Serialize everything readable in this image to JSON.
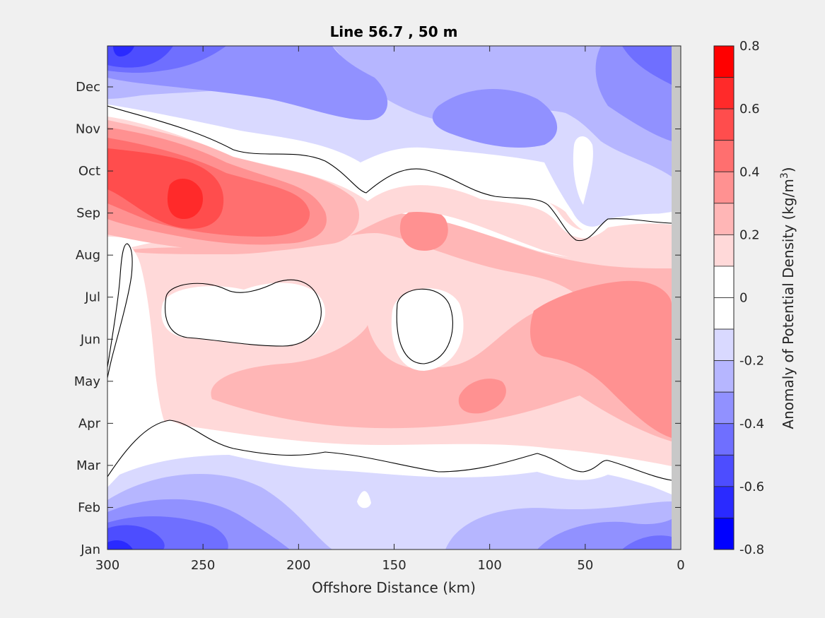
{
  "chart_data": {
    "type": "contour",
    "title": "Line 56.7 , 50 m",
    "xlabel": "Offshore Distance (km)",
    "xlim": [
      300,
      0
    ],
    "x_reversed": true,
    "x_ticks": [
      "300",
      "250",
      "200",
      "150",
      "100",
      "50",
      "0"
    ],
    "y_ticks": [
      "Jan",
      "Feb",
      "Mar",
      "Apr",
      "May",
      "Jun",
      "Jul",
      "Aug",
      "Sep",
      "Oct",
      "Nov",
      "Dec"
    ],
    "colorbar": {
      "label": "Anomaly of Potential Density (kg/m",
      "label_superscript": "3",
      "label_suffix": ")",
      "range": [
        -0.8,
        0.8
      ],
      "step": 0.1,
      "tick_labels": [
        "0.8",
        "0.6",
        "0.4",
        "0.2",
        "0",
        "-0.2",
        "-0.4",
        "-0.6",
        "-0.8"
      ],
      "colors": {
        "0.8": "#ff0000",
        "0.7": "#ff2a2a",
        "0.6": "#ff4d4d",
        "0.5": "#ff6f6f",
        "0.4": "#ff9191",
        "0.3": "#ffb6b6",
        "0.2": "#ffd9d9",
        "0.1": "#ffffff",
        "0": "#ffffff",
        "-0.1": "#d9d9ff",
        "-0.2": "#b6b6ff",
        "-0.3": "#9191ff",
        "-0.4": "#6f6fff",
        "-0.5": "#4d4dff",
        "-0.6": "#2a2aff",
        "-0.7": "#0000ff"
      }
    },
    "features": [
      {
        "month": "Jan-Feb",
        "range_km": [
          300,
          0
        ],
        "anomaly": -0.4,
        "note": "negative, strongest near 280-300 km (-0.6)"
      },
      {
        "month": "Mar",
        "range_km": [
          300,
          0
        ],
        "anomaly": -0.1
      },
      {
        "month": "Apr-Jun",
        "range_km": [
          300,
          0
        ],
        "anomaly": 0.2,
        "note": "positive, up to 0.4 near 0-60 km"
      },
      {
        "month": "Jul",
        "x_km": 210,
        "anomaly": -0.1,
        "note": "local negative eddy"
      },
      {
        "month": "Jul",
        "x_km": 135,
        "anomaly": -0.1,
        "note": "local negative eddy"
      },
      {
        "month": "Sep",
        "x_km": 260,
        "anomaly": 0.7,
        "note": "maximum positive anomaly"
      },
      {
        "month": "Sep",
        "x_km": 140,
        "anomaly": 0.4
      },
      {
        "month": "Nov-Dec",
        "range_km": [
          300,
          0
        ],
        "anomaly": -0.3
      }
    ],
    "contour_line_level": 0
  }
}
